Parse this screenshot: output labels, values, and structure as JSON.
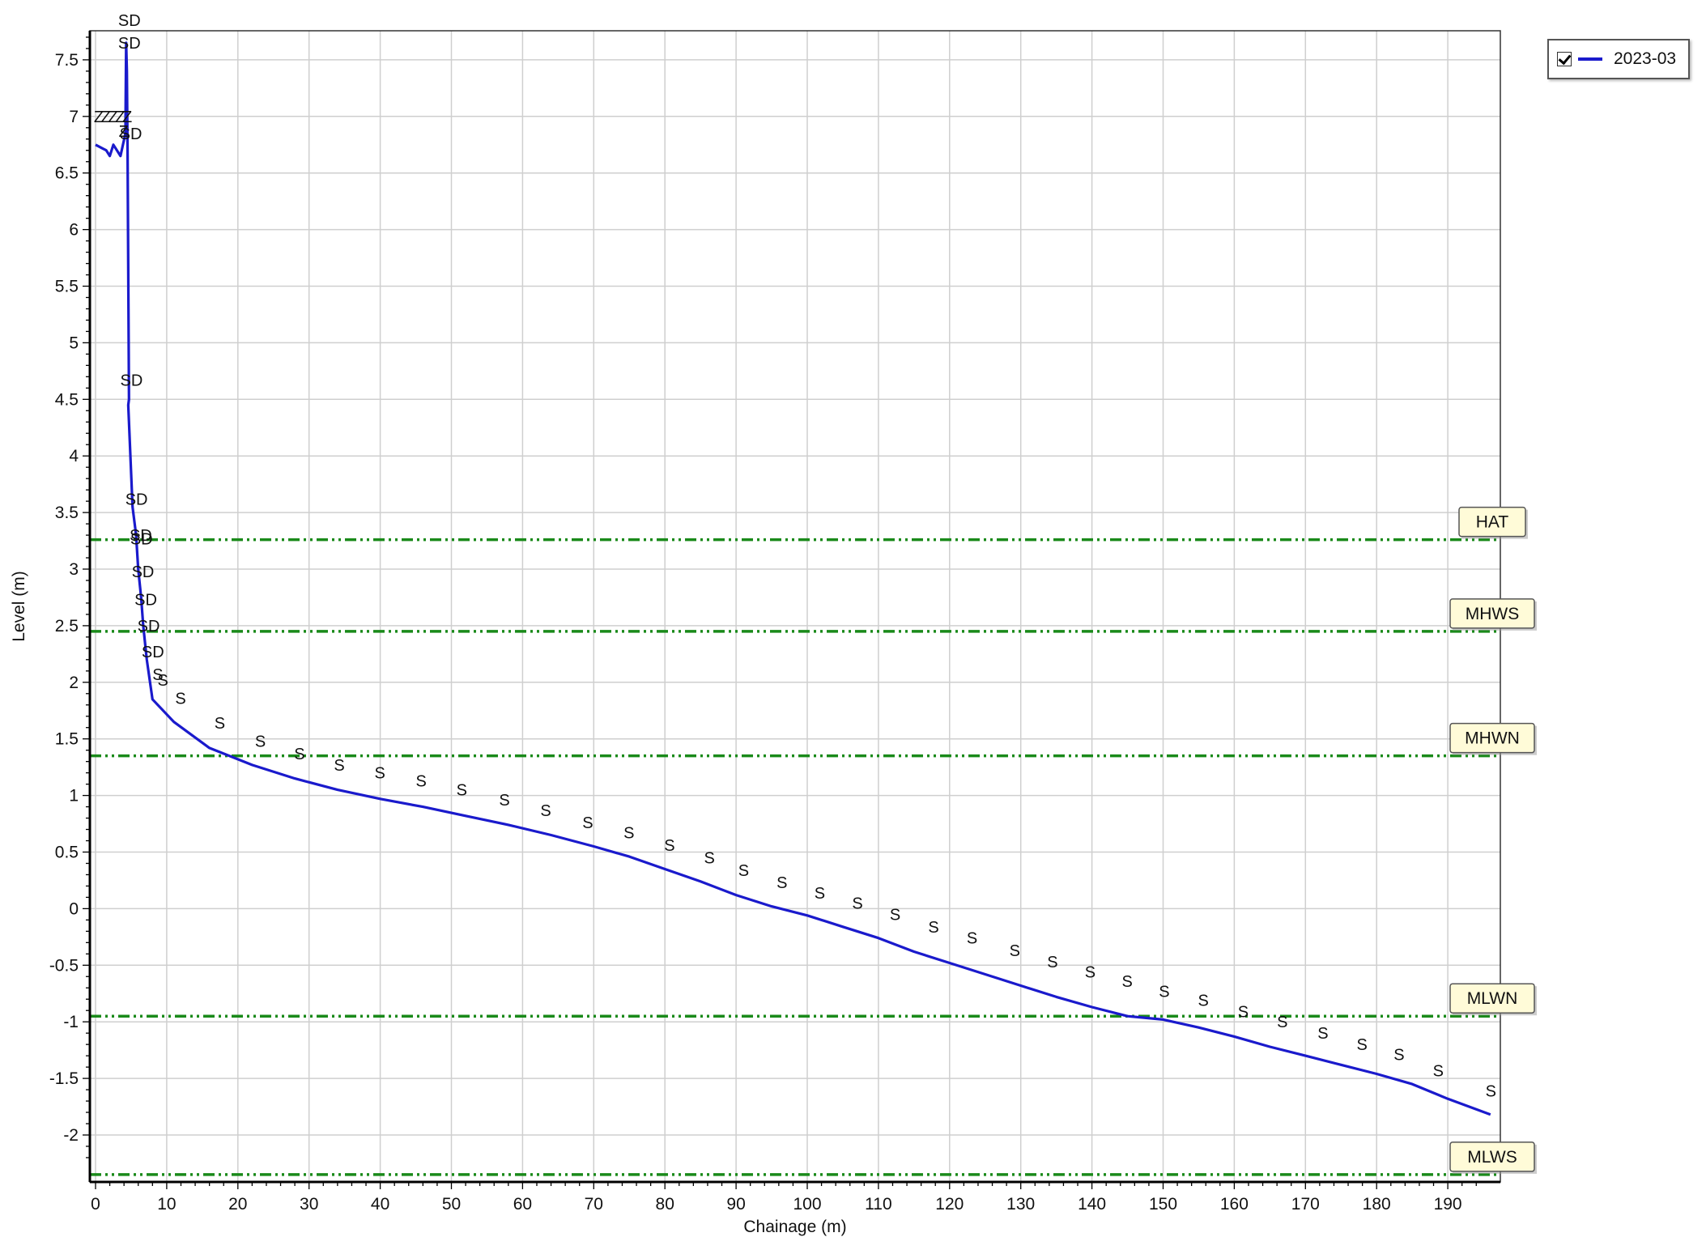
{
  "chart_data": {
    "type": "line",
    "title": "",
    "xlabel": "Chainage (m)",
    "ylabel": "Level (m)",
    "xlim": [
      -1,
      196
    ],
    "ylim": [
      -2.45,
      7.75
    ],
    "x_ticks": [
      0,
      10,
      20,
      30,
      40,
      50,
      60,
      70,
      80,
      90,
      100,
      110,
      120,
      130,
      140,
      150,
      160,
      170,
      180,
      190
    ],
    "x_tick_labels": [
      "0",
      "10",
      "20",
      "30",
      "40",
      "50",
      "60",
      "70",
      "80",
      "90",
      "100",
      "110",
      "120",
      "130",
      "140",
      "150",
      "160",
      "170",
      "180",
      "190"
    ],
    "y_ticks": [
      -2,
      -1.5,
      -1,
      -0.5,
      0,
      0.5,
      1,
      1.5,
      2,
      2.5,
      3,
      3.5,
      4,
      4.5,
      5,
      5.5,
      6,
      6.5,
      7,
      7.5
    ],
    "y_tick_labels": [
      "-2",
      "-1.5",
      "-1",
      "-0.5",
      "0",
      "0.5",
      "1",
      "1.5",
      "2",
      "2.5",
      "3",
      "3.5",
      "4",
      "4.5",
      "5",
      "5.5",
      "6",
      "6.5",
      "7",
      "7.5"
    ],
    "grid": true,
    "legend_position": "top-right (outside plot)",
    "series": [
      {
        "name": "2023-03",
        "color": "#1a1acc",
        "checked": true,
        "x": [
          0,
          1.5,
          2,
          2.5,
          3,
          3.5,
          4.2,
          4.3,
          4.4,
          4.5,
          4.7,
          4.6,
          5.2,
          5.7,
          6,
          6.4,
          6.7,
          7.2,
          8,
          11,
          16,
          22,
          28,
          34,
          40,
          46,
          52,
          58,
          64,
          70,
          75,
          80,
          85,
          90,
          95,
          100,
          105,
          110,
          115,
          120,
          125,
          130,
          135,
          140,
          145,
          150,
          155,
          160,
          165,
          170,
          175,
          180,
          185,
          190,
          196
        ],
        "y": [
          6.75,
          6.7,
          6.65,
          6.75,
          6.7,
          6.65,
          6.85,
          7.65,
          7.4,
          6.65,
          4.5,
          4.45,
          3.55,
          3.3,
          3.0,
          2.75,
          2.5,
          2.2,
          1.85,
          1.65,
          1.42,
          1.27,
          1.15,
          1.05,
          0.97,
          0.9,
          0.82,
          0.74,
          0.65,
          0.55,
          0.46,
          0.35,
          0.24,
          0.12,
          0.02,
          -0.06,
          -0.16,
          -0.26,
          -0.38,
          -0.48,
          -0.58,
          -0.68,
          -0.78,
          -0.87,
          -0.95,
          -0.98,
          -1.05,
          -1.13,
          -1.22,
          -1.3,
          -1.38,
          -1.46,
          -1.55,
          -1.68,
          -1.82
        ]
      }
    ],
    "reference_lines": [
      {
        "name": "HAT",
        "y": 3.26,
        "color": "#1a8a1a"
      },
      {
        "name": "MHWS",
        "y": 2.45,
        "color": "#1a8a1a"
      },
      {
        "name": "MHWN",
        "y": 1.35,
        "color": "#1a8a1a"
      },
      {
        "name": "MLWN",
        "y": -0.95,
        "color": "#1a8a1a"
      },
      {
        "name": "MLWS",
        "y": -2.35,
        "color": "#1a8a1a"
      }
    ],
    "feature_codes": [
      {
        "code": "SD",
        "x": 4.3,
        "y": 7.85
      },
      {
        "code": "SD",
        "x": 4.3,
        "y": 7.65
      },
      {
        "code": "SD",
        "x": 4.5,
        "y": 6.85
      },
      {
        "code": "Z",
        "x": 0,
        "y": 7.0
      },
      {
        "code": "Z",
        "x": 1,
        "y": 7.0
      },
      {
        "code": "Z",
        "x": 2,
        "y": 7.0
      },
      {
        "code": "Z",
        "x": 3,
        "y": 7.0
      },
      {
        "code": "Z",
        "x": 4,
        "y": 7.0
      },
      {
        "code": "Z",
        "x": 3.5,
        "y": 6.87
      },
      {
        "code": "SD",
        "x": 4.6,
        "y": 4.67
      },
      {
        "code": "SD",
        "x": 5.3,
        "y": 3.62
      },
      {
        "code": "SD",
        "x": 5.9,
        "y": 3.3
      },
      {
        "code": "SD",
        "x": 6,
        "y": 3.27
      },
      {
        "code": "SD",
        "x": 6.2,
        "y": 2.98
      },
      {
        "code": "SD",
        "x": 6.6,
        "y": 2.73
      },
      {
        "code": "SD",
        "x": 7,
        "y": 2.5
      },
      {
        "code": "SD",
        "x": 7.6,
        "y": 2.27
      },
      {
        "code": "S",
        "x": 8.3,
        "y": 2.07
      },
      {
        "code": "S",
        "x": 9,
        "y": 2.02
      },
      {
        "code": "S",
        "x": 11.5,
        "y": 1.86
      },
      {
        "code": "S",
        "x": 17,
        "y": 1.64
      },
      {
        "code": "S",
        "x": 22.7,
        "y": 1.48
      },
      {
        "code": "S",
        "x": 28.2,
        "y": 1.37
      },
      {
        "code": "S",
        "x": 33.8,
        "y": 1.27
      },
      {
        "code": "S",
        "x": 39.5,
        "y": 1.2
      },
      {
        "code": "S",
        "x": 45.3,
        "y": 1.13
      },
      {
        "code": "S",
        "x": 51,
        "y": 1.05
      },
      {
        "code": "S",
        "x": 57,
        "y": 0.96
      },
      {
        "code": "S",
        "x": 62.8,
        "y": 0.87
      },
      {
        "code": "S",
        "x": 68.7,
        "y": 0.76
      },
      {
        "code": "S",
        "x": 74.5,
        "y": 0.67
      },
      {
        "code": "S",
        "x": 80.2,
        "y": 0.56
      },
      {
        "code": "S",
        "x": 85.8,
        "y": 0.45
      },
      {
        "code": "S",
        "x": 90.6,
        "y": 0.34
      },
      {
        "code": "S",
        "x": 96,
        "y": 0.23
      },
      {
        "code": "S",
        "x": 101.3,
        "y": 0.14
      },
      {
        "code": "S",
        "x": 106.6,
        "y": 0.05
      },
      {
        "code": "S",
        "x": 111.9,
        "y": -0.05
      },
      {
        "code": "S",
        "x": 117.3,
        "y": -0.16
      },
      {
        "code": "S",
        "x": 122.7,
        "y": -0.26
      },
      {
        "code": "S",
        "x": 128.7,
        "y": -0.37
      },
      {
        "code": "S",
        "x": 134,
        "y": -0.47
      },
      {
        "code": "S",
        "x": 139.3,
        "y": -0.56
      },
      {
        "code": "S",
        "x": 144.5,
        "y": -0.64
      },
      {
        "code": "S",
        "x": 149.7,
        "y": -0.73
      },
      {
        "code": "S",
        "x": 155.2,
        "y": -0.81
      },
      {
        "code": "S",
        "x": 160.8,
        "y": -0.91
      },
      {
        "code": "S",
        "x": 166.3,
        "y": -1.0
      },
      {
        "code": "S",
        "x": 172,
        "y": -1.1
      },
      {
        "code": "S",
        "x": 177.5,
        "y": -1.2
      },
      {
        "code": "S",
        "x": 182.7,
        "y": -1.29
      },
      {
        "code": "S",
        "x": 188.2,
        "y": -1.43
      },
      {
        "code": "S",
        "x": 195.6,
        "y": -1.61
      }
    ]
  },
  "legend": {
    "label": "2023-03",
    "color": "#1a1acc",
    "checked": true
  }
}
